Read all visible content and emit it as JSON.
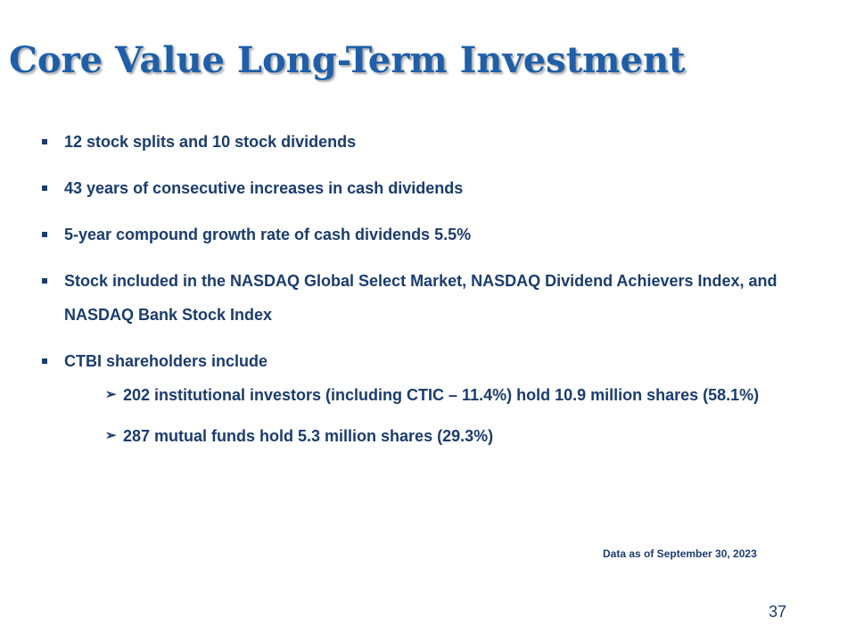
{
  "slide": {
    "title": "Core Value Long-Term Investment",
    "bullets": [
      "12 stock splits and 10 stock dividends",
      "43 years of consecutive increases in cash dividends",
      "5-year compound growth rate of cash dividends 5.5%",
      "Stock included in the NASDAQ Global Select Market, NASDAQ Dividend Achievers Index, and NASDAQ  Bank Stock Index",
      "CTBI shareholders include"
    ],
    "sub_bullets": [
      "202 institutional investors (including CTIC – 11.4%) hold 10.9 million shares (58.1%)",
      "287 mutual funds hold 5.3 million  shares (29.3%)"
    ],
    "footnote": "Data as of September 30, 2023",
    "page_number": "37",
    "colors": {
      "title": "#1f5fa8",
      "body_text": "#1a3c6e"
    },
    "icons": {
      "bullet": "square-bullet-icon",
      "sub_bullet": "arrow-bullet-icon"
    }
  }
}
